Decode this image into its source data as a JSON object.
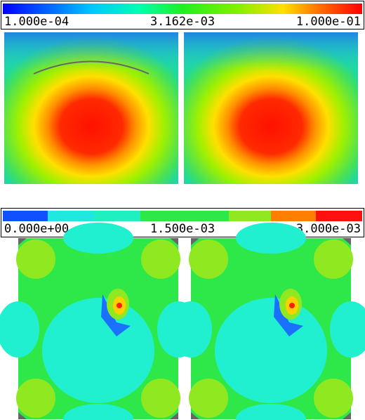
{
  "colorbars": [
    {
      "labels": [
        "1.000e-04",
        "3.162e-03",
        "1.000e-01"
      ]
    },
    {
      "labels": [
        "0.000e+00",
        "1.500e-03",
        "3.000e-03"
      ]
    }
  ]
}
